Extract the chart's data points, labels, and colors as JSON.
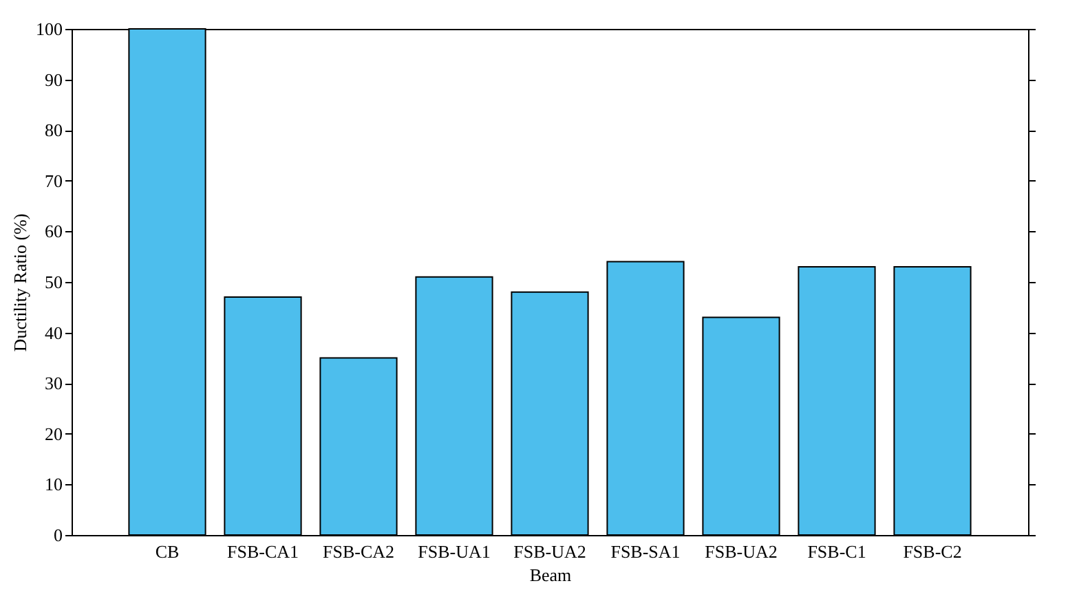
{
  "chart_data": {
    "type": "bar",
    "xlabel": "Beam",
    "ylabel": "Ductility Ratio (%)",
    "categories": [
      "CB",
      "FSB-CA1",
      "FSB-CA2",
      "FSB-UA1",
      "FSB-UA2",
      "FSB-SA1",
      "FSB-UA2",
      "FSB-C1",
      "FSB-C2"
    ],
    "values": [
      100,
      47,
      35,
      51,
      48,
      54,
      43,
      53,
      53
    ],
    "color": "#4dbeed",
    "ylim": [
      0,
      100
    ],
    "yticks": [
      0,
      10,
      20,
      30,
      40,
      50,
      60,
      70,
      80,
      90,
      100
    ],
    "grid": false
  }
}
